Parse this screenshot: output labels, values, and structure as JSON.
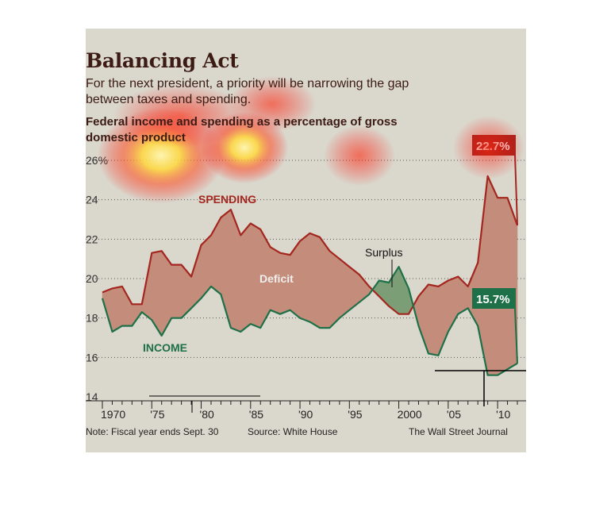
{
  "header": {
    "title": "Balancing Act",
    "subtitle": "For the next president, a priority will be narrowing the gap between taxes and spending.",
    "caption": "Federal income and spending as a percentage of gross domestic product"
  },
  "footer": {
    "note": "Note: Fiscal year ends Sept. 30",
    "source": "Source: White House",
    "credit": "The Wall Street Journal"
  },
  "colors": {
    "background": "#dad7cc",
    "spending": "#a3261f",
    "income": "#1e7048",
    "deficit_fill": "#c48c7a",
    "surplus_fill": "#7c9e76"
  },
  "chart_data": {
    "type": "line",
    "x": [
      1970,
      1971,
      1972,
      1973,
      1974,
      1975,
      1976,
      1977,
      1978,
      1979,
      1980,
      1981,
      1982,
      1983,
      1984,
      1985,
      1986,
      1987,
      1988,
      1989,
      1990,
      1991,
      1992,
      1993,
      1994,
      1995,
      1996,
      1997,
      1998,
      1999,
      2000,
      2001,
      2002,
      2003,
      2004,
      2005,
      2006,
      2007,
      2008,
      2009,
      2010,
      2011,
      2012
    ],
    "series": [
      {
        "name": "SPENDING",
        "values": [
          19.3,
          19.5,
          19.6,
          18.7,
          18.7,
          21.3,
          21.4,
          20.7,
          20.7,
          20.1,
          21.7,
          22.2,
          23.1,
          23.5,
          22.2,
          22.8,
          22.5,
          21.6,
          21.3,
          21.2,
          21.9,
          22.3,
          22.1,
          21.4,
          21.0,
          20.6,
          20.2,
          19.6,
          19.1,
          18.6,
          18.2,
          18.2,
          19.1,
          19.7,
          19.6,
          19.9,
          20.1,
          19.6,
          20.8,
          25.2,
          24.1,
          24.1,
          22.7
        ]
      },
      {
        "name": "INCOME",
        "values": [
          19.0,
          17.3,
          17.6,
          17.6,
          18.3,
          17.9,
          17.1,
          18.0,
          18.0,
          18.5,
          19.0,
          19.6,
          19.2,
          17.5,
          17.3,
          17.7,
          17.5,
          18.4,
          18.2,
          18.4,
          18.0,
          17.8,
          17.5,
          17.5,
          18.0,
          18.4,
          18.8,
          19.2,
          19.9,
          19.8,
          20.6,
          19.5,
          17.6,
          16.2,
          16.1,
          17.3,
          18.2,
          18.5,
          17.6,
          15.1,
          15.1,
          15.4,
          15.7
        ]
      }
    ],
    "ylim": [
      14,
      26
    ],
    "y_ticks": [
      "14",
      "16",
      "18",
      "20",
      "22",
      "24",
      "26%"
    ],
    "x_ticks": [
      {
        "value": 1970,
        "label": "1970"
      },
      {
        "value": 1975,
        "label": "'75"
      },
      {
        "value": 1980,
        "label": "'80"
      },
      {
        "value": 1985,
        "label": "'85"
      },
      {
        "value": 1990,
        "label": "'90"
      },
      {
        "value": 1995,
        "label": "'95"
      },
      {
        "value": 2000,
        "label": "2000"
      },
      {
        "value": 2005,
        "label": "'05"
      },
      {
        "value": 2010,
        "label": "'10"
      }
    ],
    "series_labels": {
      "spending": "SPENDING",
      "income": "INCOME"
    },
    "annotations": {
      "deficit": "Deficit",
      "surplus": "Surplus",
      "spending_end": "22.7%",
      "income_end": "15.7%"
    },
    "grid": "dotted horizontal"
  }
}
